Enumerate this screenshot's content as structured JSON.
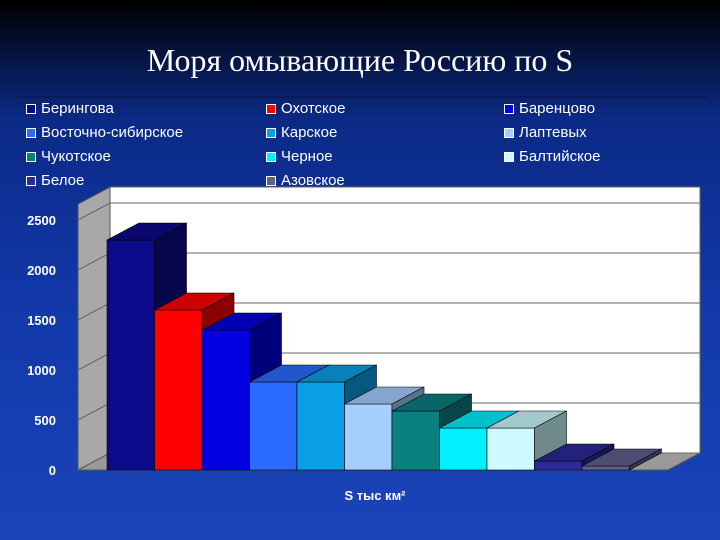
{
  "title": "Моря омывающие Россию по S",
  "chart_data": {
    "type": "bar",
    "title": "Моря омывающие Россию по S",
    "xlabel": "S тыс км²",
    "ylabel": "",
    "ylim": [
      0,
      2500
    ],
    "yticks": [
      0,
      500,
      1000,
      1500,
      2000,
      2500
    ],
    "grid": true,
    "legend": "top",
    "three_d": true,
    "series": [
      {
        "name": "Берингова",
        "value": 2300,
        "color": "#0a0a8a"
      },
      {
        "name": "Охотское",
        "value": 1600,
        "color": "#ff0000"
      },
      {
        "name": "Баренцово",
        "value": 1400,
        "color": "#0000e0"
      },
      {
        "name": "Восточно-сибирское",
        "value": 880,
        "color": "#2b6bff"
      },
      {
        "name": "Карское",
        "value": 880,
        "color": "#0aa0e8"
      },
      {
        "name": "Лаптевых",
        "value": 660,
        "color": "#a6cfff"
      },
      {
        "name": "Чукотское",
        "value": 590,
        "color": "#0a8080"
      },
      {
        "name": "Черное",
        "value": 420,
        "color": "#00f0ff"
      },
      {
        "name": "Балтийское",
        "value": 420,
        "color": "#ccfaff"
      },
      {
        "name": "Белое",
        "value": 90,
        "color": "#2a2a9a"
      },
      {
        "name": "Азовское",
        "value": 40,
        "color": "#606090"
      }
    ]
  }
}
